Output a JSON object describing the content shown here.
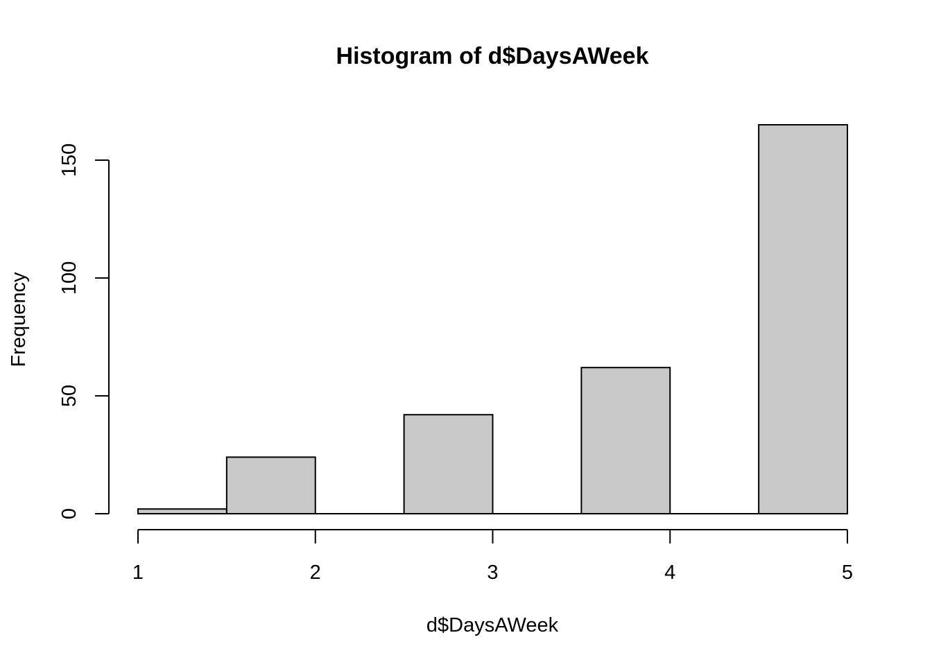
{
  "chart_data": {
    "type": "bar",
    "subtype": "histogram",
    "title": "Histogram of d$DaysAWeek",
    "xlabel": "d$DaysAWeek",
    "ylabel": "Frequency",
    "bins": [
      {
        "start": 1.0,
        "end": 1.5,
        "count": 2
      },
      {
        "start": 1.5,
        "end": 2.0,
        "count": 24
      },
      {
        "start": 2.0,
        "end": 2.5,
        "count": 0
      },
      {
        "start": 2.5,
        "end": 3.0,
        "count": 42
      },
      {
        "start": 3.0,
        "end": 3.5,
        "count": 0
      },
      {
        "start": 3.5,
        "end": 4.0,
        "count": 62
      },
      {
        "start": 4.0,
        "end": 4.5,
        "count": 0
      },
      {
        "start": 4.5,
        "end": 5.0,
        "count": 165
      }
    ],
    "xlim": [
      1,
      5
    ],
    "ylim": [
      0,
      165
    ],
    "x_ticks": [
      1,
      2,
      3,
      4,
      5
    ],
    "y_ticks": [
      0,
      50,
      100,
      150
    ],
    "bar_fill": "#c8c8c8",
    "bar_stroke": "#000000",
    "grid": false,
    "legend": "none"
  }
}
